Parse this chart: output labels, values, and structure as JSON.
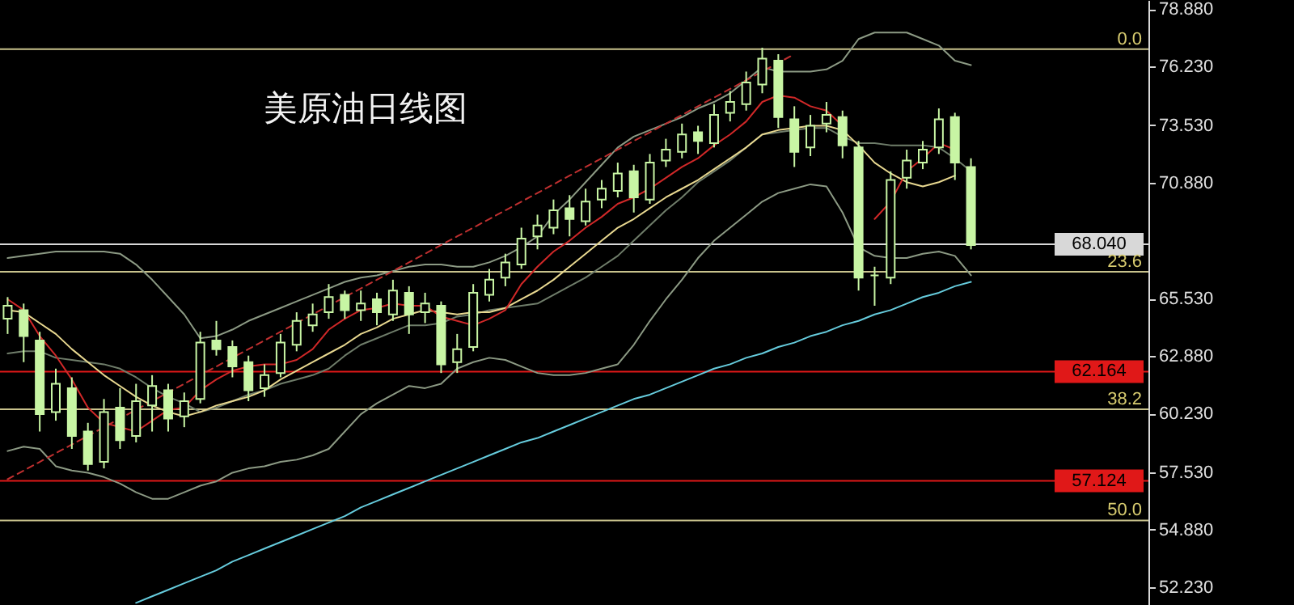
{
  "chart_data": {
    "type": "candlestick",
    "title": "美原油日线图",
    "color": "#c8f5a4",
    "categories": [
      null,
      null,
      null,
      null,
      null,
      null,
      null,
      null,
      null,
      null,
      null,
      null,
      null,
      null,
      null,
      null,
      null,
      null,
      null,
      null,
      null,
      null,
      null,
      null,
      null,
      null,
      null,
      null,
      null,
      null,
      null,
      null,
      null,
      null,
      null,
      null,
      null,
      null,
      null,
      null,
      null,
      null,
      null,
      null,
      null,
      null,
      null,
      null,
      null,
      null,
      null,
      null,
      null,
      null,
      null,
      null,
      null,
      null,
      null,
      null,
      null
    ],
    "ohlc": [
      [
        64.6,
        65.6,
        63.9,
        65.2
      ],
      [
        65.0,
        65.3,
        62.6,
        63.8
      ],
      [
        63.6,
        64.0,
        59.4,
        60.2
      ],
      [
        60.3,
        62.3,
        59.9,
        61.6
      ],
      [
        61.4,
        61.9,
        58.6,
        59.2
      ],
      [
        59.4,
        59.8,
        57.6,
        57.9
      ],
      [
        58.0,
        60.9,
        57.7,
        60.3
      ],
      [
        60.5,
        61.4,
        58.6,
        59.0
      ],
      [
        59.2,
        61.6,
        58.9,
        60.8
      ],
      [
        60.6,
        62.0,
        59.4,
        61.5
      ],
      [
        61.3,
        61.6,
        59.4,
        60.0
      ],
      [
        60.1,
        61.2,
        59.6,
        60.8
      ],
      [
        60.9,
        64.0,
        60.7,
        63.5
      ],
      [
        63.6,
        64.5,
        62.9,
        63.2
      ],
      [
        63.3,
        63.6,
        61.9,
        62.4
      ],
      [
        62.6,
        62.9,
        60.8,
        61.3
      ],
      [
        61.4,
        62.5,
        61.0,
        62.0
      ],
      [
        62.1,
        63.9,
        61.9,
        63.5
      ],
      [
        63.4,
        64.9,
        63.1,
        64.5
      ],
      [
        64.3,
        65.3,
        64.0,
        64.8
      ],
      [
        64.9,
        66.2,
        64.6,
        65.6
      ],
      [
        65.7,
        65.9,
        64.6,
        65.0
      ],
      [
        65.0,
        65.9,
        64.5,
        65.3
      ],
      [
        65.5,
        65.8,
        64.3,
        64.9
      ],
      [
        64.8,
        66.4,
        64.5,
        65.9
      ],
      [
        65.8,
        66.1,
        63.9,
        64.8
      ],
      [
        64.9,
        65.8,
        64.4,
        65.3
      ],
      [
        65.2,
        65.4,
        62.1,
        62.5
      ],
      [
        62.6,
        63.9,
        62.1,
        63.2
      ],
      [
        63.3,
        66.2,
        63.1,
        65.8
      ],
      [
        65.7,
        66.9,
        65.4,
        66.4
      ],
      [
        66.5,
        67.6,
        66.1,
        67.2
      ],
      [
        67.1,
        68.8,
        66.9,
        68.3
      ],
      [
        68.4,
        69.4,
        67.8,
        68.9
      ],
      [
        68.8,
        70.1,
        68.5,
        69.6
      ],
      [
        69.7,
        70.3,
        68.4,
        69.2
      ],
      [
        69.1,
        70.6,
        68.9,
        70.0
      ],
      [
        70.1,
        71.0,
        69.7,
        70.6
      ],
      [
        70.5,
        71.8,
        70.2,
        71.3
      ],
      [
        71.4,
        71.7,
        69.5,
        70.2
      ],
      [
        70.1,
        72.2,
        69.9,
        71.8
      ],
      [
        71.9,
        72.9,
        71.6,
        72.4
      ],
      [
        72.3,
        73.6,
        72.0,
        73.1
      ],
      [
        73.2,
        73.5,
        72.2,
        72.8
      ],
      [
        72.7,
        74.5,
        72.5,
        74.0
      ],
      [
        74.1,
        75.1,
        73.7,
        74.6
      ],
      [
        74.5,
        76.0,
        74.2,
        75.5
      ],
      [
        75.4,
        77.1,
        75.0,
        76.6
      ],
      [
        76.5,
        76.8,
        73.4,
        73.9
      ],
      [
        73.8,
        74.4,
        71.6,
        72.3
      ],
      [
        72.5,
        74.0,
        72.1,
        73.5
      ],
      [
        73.6,
        74.6,
        73.2,
        74.0
      ],
      [
        73.9,
        74.2,
        72.0,
        72.6
      ],
      [
        72.5,
        72.8,
        65.9,
        66.5
      ],
      [
        66.6,
        67.0,
        65.2,
        66.6
      ],
      [
        66.5,
        71.4,
        66.2,
        71.0
      ],
      [
        71.1,
        72.4,
        70.6,
        71.9
      ],
      [
        71.8,
        72.8,
        71.5,
        72.4
      ],
      [
        72.5,
        74.3,
        72.2,
        73.8
      ],
      [
        73.9,
        74.1,
        71.0,
        71.8
      ],
      [
        71.6,
        72.0,
        67.8,
        68.0
      ]
    ],
    "series": [
      {
        "type": "line",
        "color": "#8c9a84",
        "values": [
          67.4,
          67.5,
          67.6,
          67.7,
          67.7,
          67.7,
          67.7,
          67.6,
          67.1,
          66.4,
          65.6,
          64.8,
          63.7,
          63.8,
          64.1,
          64.5,
          64.8,
          65.1,
          65.4,
          65.7,
          66.0,
          66.3,
          66.5,
          66.6,
          66.8,
          67.0,
          67.1,
          67.1,
          67.0,
          67.0,
          67.2,
          67.5,
          67.9,
          68.4,
          69.4,
          70.1,
          70.9,
          71.7,
          72.5,
          73.0,
          73.3,
          73.6,
          73.9,
          74.3,
          74.6,
          75.0,
          75.6,
          76.2,
          76.0,
          76.0,
          76.0,
          76.1,
          76.5,
          77.5,
          77.8,
          77.8,
          77.8,
          77.5,
          77.2,
          76.5,
          76.3
        ]
      },
      {
        "type": "line",
        "color": "#6f7d6a",
        "values": [
          63.0,
          63.1,
          63.1,
          62.8,
          62.7,
          62.6,
          62.5,
          62.3,
          61.9,
          61.4,
          61.0,
          60.7,
          60.3,
          60.5,
          60.8,
          61.1,
          61.3,
          61.6,
          61.8,
          62.0,
          62.3,
          62.9,
          63.4,
          63.7,
          64.0,
          64.3,
          64.3,
          64.4,
          64.7,
          64.8,
          65.0,
          65.1,
          65.2,
          65.3,
          65.7,
          66.1,
          66.5,
          67.0,
          67.5,
          68.2,
          68.9,
          69.6,
          70.2,
          70.9,
          71.4,
          71.9,
          72.5,
          73.1,
          73.2,
          73.3,
          73.4,
          73.4,
          73.0,
          72.7,
          72.7,
          72.6,
          72.6,
          72.6,
          72.5,
          72.0,
          71.4
        ]
      },
      {
        "type": "line",
        "color": "#8c9a84",
        "values": [
          58.5,
          58.7,
          58.6,
          57.8,
          57.6,
          57.5,
          57.3,
          57.0,
          56.6,
          56.3,
          56.3,
          56.6,
          56.9,
          57.1,
          57.5,
          57.7,
          57.8,
          58.0,
          58.1,
          58.3,
          58.6,
          59.4,
          60.2,
          60.7,
          61.1,
          61.5,
          61.4,
          61.6,
          62.3,
          62.6,
          62.8,
          62.7,
          62.4,
          62.1,
          62.0,
          62.0,
          62.1,
          62.3,
          62.5,
          63.4,
          64.5,
          65.5,
          66.4,
          67.4,
          68.2,
          68.8,
          69.4,
          70.0,
          70.4,
          70.6,
          70.8,
          70.7,
          69.5,
          67.9,
          67.5,
          67.4,
          67.4,
          67.6,
          67.7,
          67.5,
          66.6
        ]
      },
      {
        "type": "line",
        "color": "#66ccdd",
        "values": [
          null,
          null,
          null,
          null,
          null,
          null,
          null,
          null,
          51.5,
          51.8,
          52.1,
          52.4,
          52.7,
          53.0,
          53.4,
          53.7,
          54.0,
          54.3,
          54.6,
          54.9,
          55.2,
          55.5,
          55.9,
          56.2,
          56.5,
          56.8,
          57.1,
          57.4,
          57.7,
          58.0,
          58.3,
          58.6,
          58.9,
          59.1,
          59.4,
          59.7,
          60.0,
          60.3,
          60.6,
          60.9,
          61.1,
          61.4,
          61.7,
          62.0,
          62.3,
          62.5,
          62.8,
          63.0,
          63.3,
          63.5,
          63.8,
          64.0,
          64.3,
          64.5,
          64.8,
          65.0,
          65.3,
          65.6,
          65.8,
          66.1,
          66.3
        ]
      },
      {
        "type": "line",
        "color": "#e8d890",
        "values": [
          65.0,
          64.9,
          64.4,
          63.9,
          63.2,
          62.6,
          62.0,
          61.5,
          61.0,
          60.6,
          60.3,
          60.1,
          60.3,
          60.6,
          60.8,
          61.0,
          61.3,
          61.8,
          62.2,
          62.6,
          63.0,
          63.4,
          63.9,
          64.2,
          64.6,
          64.8,
          65.0,
          64.9,
          64.8,
          64.9,
          64.9,
          65.1,
          65.5,
          65.9,
          66.4,
          67.0,
          67.6,
          68.2,
          68.8,
          69.2,
          69.7,
          70.2,
          70.6,
          71.0,
          71.5,
          72.0,
          72.5,
          73.1,
          73.3,
          73.4,
          73.5,
          73.5,
          73.3,
          72.6,
          71.8,
          71.3,
          70.9,
          70.7,
          70.9,
          71.2,
          null
        ]
      },
      {
        "type": "line",
        "color": "#d02828",
        "values": [
          65.5,
          65.0,
          63.8,
          62.9,
          61.8,
          60.5,
          59.8,
          59.6,
          59.4,
          59.9,
          60.4,
          60.5,
          61.3,
          61.8,
          62.2,
          62.4,
          62.5,
          62.5,
          62.7,
          63.2,
          64.1,
          64.6,
          65.0,
          65.1,
          65.3,
          65.2,
          65.2,
          64.7,
          64.5,
          64.3,
          64.6,
          65.0,
          66.2,
          67.0,
          67.7,
          68.2,
          68.8,
          69.3,
          69.9,
          70.2,
          70.6,
          71.1,
          71.6,
          72.0,
          72.6,
          73.1,
          73.7,
          74.6,
          74.9,
          74.8,
          74.4,
          74.2,
          73.5,
          null,
          69.2,
          70.0,
          71.4,
          72.0,
          72.7,
          72.4,
          null
        ]
      },
      {
        "type": "line",
        "color": "#c03030",
        "line_style": "dashed",
        "values": [
          57.2,
          57.6,
          58.0,
          58.4,
          58.8,
          59.2,
          59.6,
          60.0,
          60.4,
          60.8,
          61.2,
          61.6,
          62.0,
          62.4,
          62.8,
          63.2,
          63.6,
          64.0,
          64.4,
          64.8,
          65.2,
          65.6,
          66.0,
          66.4,
          66.8,
          67.2,
          67.6,
          68.0,
          68.4,
          68.8,
          69.2,
          69.6,
          70.0,
          70.4,
          70.8,
          71.2,
          71.6,
          72.0,
          72.4,
          72.8,
          73.2,
          73.6,
          74.0,
          74.4,
          74.8,
          75.2,
          75.6,
          76.0,
          76.4,
          76.8,
          null,
          null,
          null,
          null,
          null,
          null,
          null,
          null,
          null,
          null,
          null
        ]
      }
    ],
    "ref_lines": [
      {
        "axis": "y",
        "value": 77.03,
        "color": "#c8c28c"
      },
      {
        "axis": "y",
        "value": 66.77,
        "color": "#c8c28c"
      },
      {
        "axis": "y",
        "value": 60.43,
        "color": "#c8c28c"
      },
      {
        "axis": "y",
        "value": 55.3,
        "color": "#c8c28c"
      },
      {
        "axis": "y",
        "value": 62.164,
        "label": "62.164",
        "color": "#e01818"
      },
      {
        "axis": "y",
        "value": 57.124,
        "label": "57.124",
        "color": "#e01818"
      },
      {
        "axis": "y",
        "value": 68.04,
        "label": "68.040",
        "color": "#d8d8d8"
      }
    ],
    "annotations": [
      "0.0",
      "23.6",
      "38.2",
      "50.0"
    ],
    "ylim": [
      51.4,
      79.3
    ],
    "yticks": [
      {
        "value": 52.23,
        "label": "52.230"
      },
      {
        "value": 54.88,
        "label": "54.880"
      },
      {
        "value": 57.53,
        "label": "57.530"
      },
      {
        "value": 60.23,
        "label": "60.230"
      },
      {
        "value": 62.88,
        "label": "62.880"
      },
      {
        "value": 65.53,
        "label": "65.530"
      },
      {
        "value": 70.88,
        "label": "70.880"
      },
      {
        "value": 73.53,
        "label": "73.530"
      },
      {
        "value": 76.23,
        "label": "76.230"
      },
      {
        "value": 78.88,
        "label": "78.880"
      }
    ],
    "tick_labels": "y"
  }
}
